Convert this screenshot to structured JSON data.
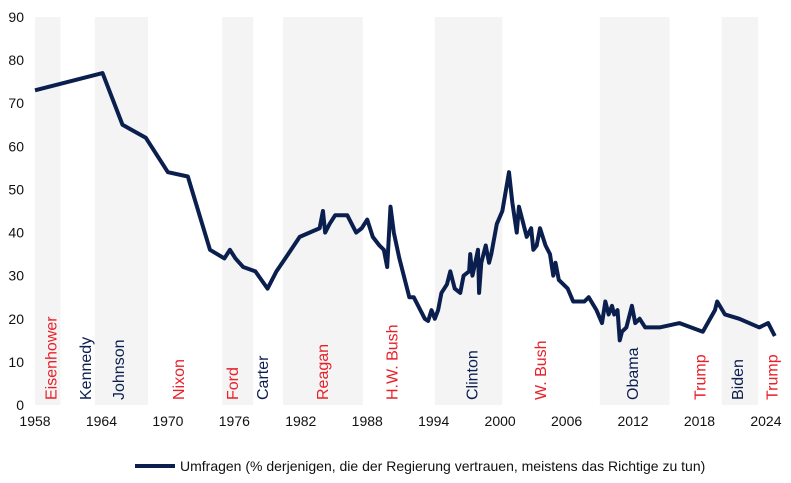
{
  "chart_data": {
    "type": "line",
    "xlim": [
      1958,
      2025
    ],
    "xticks": [
      1958,
      1964,
      1970,
      1976,
      1982,
      1988,
      1994,
      2000,
      2006,
      2012,
      2018,
      2024
    ],
    "ylim": [
      0,
      90
    ],
    "yticks": [
      0,
      10,
      20,
      30,
      40,
      50,
      60,
      70,
      80,
      90
    ],
    "grid": false,
    "legend": "bottom",
    "shade_color": "#f4f4f4",
    "shaded": [
      [
        1958,
        1960.3
      ],
      [
        1963.4,
        1968.2
      ],
      [
        1974.9,
        1977.7
      ],
      [
        1980.4,
        1987.6
      ],
      [
        1994.1,
        2000.2
      ],
      [
        2009.0,
        2015.3
      ],
      [
        2020.0,
        2023.3
      ]
    ],
    "presidents": [
      {
        "label": "Eisenhower",
        "x": 1959.4,
        "color": "#e8202a"
      },
      {
        "label": "Kennedy",
        "x": 1962.5,
        "color": "#0b1f4f"
      },
      {
        "label": "Johnson",
        "x": 1965.5,
        "color": "#0b1f4f"
      },
      {
        "label": "Nixon",
        "x": 1970.9,
        "color": "#e8202a"
      },
      {
        "label": "Ford",
        "x": 1975.8,
        "color": "#e8202a"
      },
      {
        "label": "Carter",
        "x": 1978.5,
        "color": "#0b1f4f"
      },
      {
        "label": "Reagan",
        "x": 1983.9,
        "color": "#e8202a"
      },
      {
        "label": "H.W. Bush",
        "x": 1990.2,
        "color": "#e8202a"
      },
      {
        "label": "Clinton",
        "x": 1997.4,
        "color": "#0b1f4f"
      },
      {
        "label": "W. Bush",
        "x": 2003.6,
        "color": "#e8202a"
      },
      {
        "label": "Obama",
        "x": 2011.9,
        "color": "#0b1f4f"
      },
      {
        "label": "Trump",
        "x": 2018.0,
        "color": "#e8202a"
      },
      {
        "label": "Biden",
        "x": 2021.4,
        "color": "#0b1f4f"
      },
      {
        "label": "Trump",
        "x": 2024.5,
        "color": "#e8202a"
      }
    ],
    "x": [
      1958,
      1964.1,
      1965.9,
      1968.0,
      1970.0,
      1971.8,
      1973.8,
      1975.1,
      1975.6,
      1976.1,
      1976.8,
      1977.9,
      1979.0,
      1979.8,
      1980.6,
      1981.9,
      1983.7,
      1984.0,
      1984.2,
      1984.6,
      1985.1,
      1986.2,
      1987.0,
      1987.5,
      1988.0,
      1988.5,
      1989.1,
      1989.5,
      1989.8,
      1990.1,
      1990.4,
      1990.9,
      1991.8,
      1992.2,
      1992.8,
      1993.2,
      1993.5,
      1993.8,
      1994.1,
      1994.4,
      1994.7,
      1995.2,
      1995.5,
      1995.9,
      1996.4,
      1996.7,
      1997.2,
      1997.3,
      1997.5,
      1998.0,
      1998.1,
      1998.3,
      1998.7,
      1999.0,
      1999.2,
      1999.7,
      2000.2,
      2000.8,
      2001.1,
      2001.5,
      2001.7,
      2002.0,
      2002.4,
      2002.8,
      2003.0,
      2003.3,
      2003.6,
      2004.1,
      2004.5,
      2004.8,
      2005.0,
      2005.3,
      2006.1,
      2006.6,
      2007.6,
      2008.0,
      2008.7,
      2009.2,
      2009.5,
      2009.8,
      2010.1,
      2010.3,
      2010.6,
      2010.8,
      2011.0,
      2011.4,
      2011.9,
      2012.2,
      2012.6,
      2013.1,
      2014.4,
      2016.2,
      2018.3,
      2019.4,
      2019.6,
      2020.3,
      2021.6,
      2023.4,
      2024.2,
      2024.8
    ],
    "series": [
      {
        "name": "Umfragen (% derjenigen, die der Regierung vertrauen, meistens das Richtige zu tun)",
        "color": "#0b1f4f",
        "values": [
          73,
          77,
          65,
          62,
          54,
          53,
          36,
          34,
          36,
          34,
          32,
          31,
          27,
          31,
          34,
          39,
          41,
          45,
          40,
          42,
          44,
          44,
          40,
          41,
          43,
          39,
          37,
          36,
          32,
          46,
          40,
          34,
          25,
          25,
          22,
          20,
          19.5,
          22,
          20,
          22,
          26,
          28,
          31,
          27,
          26,
          30,
          31,
          35,
          30,
          36,
          26,
          33,
          37,
          33,
          35,
          42,
          45,
          54,
          47,
          40,
          46,
          43,
          39,
          41,
          36,
          37,
          41,
          37,
          35,
          30,
          33,
          29,
          27,
          24,
          24,
          25,
          22,
          19,
          24,
          21,
          23,
          21,
          22,
          15,
          17,
          18,
          23,
          19,
          20,
          18,
          18,
          19,
          17,
          22,
          24,
          21,
          20,
          18,
          19,
          16
        ]
      }
    ]
  }
}
